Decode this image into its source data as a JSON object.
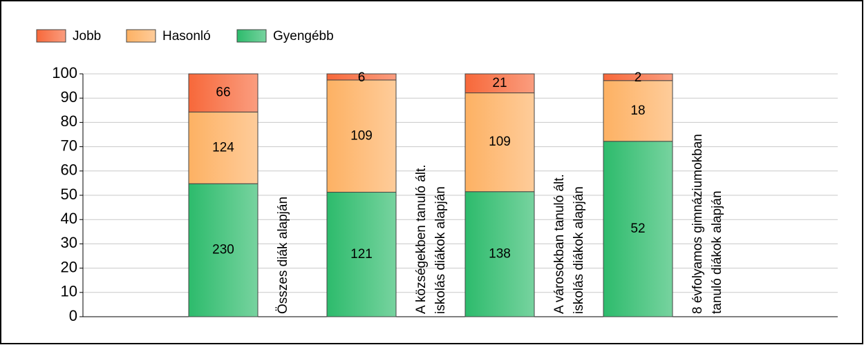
{
  "chart_data": {
    "type": "bar",
    "stacking": "percent",
    "categories": [
      [
        "Összes diák alapján"
      ],
      [
        "A községekben tanuló ált.",
        "iskolás diákok alapján"
      ],
      [
        "A városokban tanuló ált.",
        "iskolás diákok alapján"
      ],
      [
        "8 évfolyamos gimnáziumokban",
        "tanuló diákok alapján"
      ]
    ],
    "series": [
      {
        "name": "Gyengébb",
        "color": "#2dbb6c",
        "values": [
          230,
          121,
          138,
          52
        ]
      },
      {
        "name": "Hasonló",
        "color": "#fdb163",
        "values": [
          124,
          109,
          109,
          18
        ]
      },
      {
        "name": "Jobb",
        "color": "#f7683a",
        "values": [
          66,
          6,
          21,
          2
        ]
      }
    ],
    "legend_order": [
      "Jobb",
      "Hasonló",
      "Gyengébb"
    ],
    "ylim": [
      0,
      100
    ],
    "yticks": [
      0,
      10,
      20,
      30,
      40,
      50,
      60,
      70,
      80,
      90,
      100
    ],
    "grid": true
  }
}
